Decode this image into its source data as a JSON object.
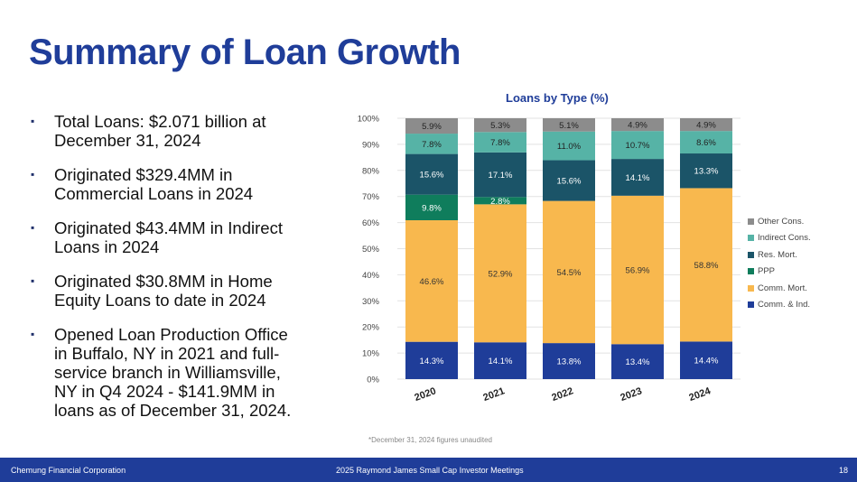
{
  "slide": {
    "title": "Summary of Loan Growth",
    "bullets": [
      "Total Loans: $2.071 billion at December 31, 2024",
      "Originated $329.4MM in Commercial Loans in 2024",
      "Originated $43.4MM in Indirect Loans in 2024",
      "Originated $30.8MM in Home Equity Loans to date in 2024",
      "Opened Loan Production Office in Buffalo, NY in 2021 and full-service branch in Williamsville, NY in Q4 2024 -  $141.9MM in loans as of December 31, 2024."
    ],
    "bullet_glyph": "▪",
    "footnote": "*December 31, 2024 figures unaudited"
  },
  "footer": {
    "org": "Chemung Financial Corporation",
    "event": "2025 Raymond James Small Cap Investor Meetings",
    "page": "18"
  },
  "chart_data": {
    "type": "bar",
    "stacked": true,
    "title": "Loans by Type (%)",
    "categories": [
      "2020",
      "2021",
      "2022",
      "2023",
      "2024"
    ],
    "ylim": [
      0,
      100
    ],
    "yticks": [
      "0%",
      "10%",
      "20%",
      "30%",
      "40%",
      "50%",
      "60%",
      "70%",
      "80%",
      "90%",
      "100%"
    ],
    "legend_position": "right",
    "grid": true,
    "series": [
      {
        "name": "Comm. & Ind.",
        "color": "#1f3d99",
        "label_color": "#ffffff",
        "values": [
          14.3,
          14.1,
          13.8,
          13.4,
          14.4
        ],
        "labels": [
          "14.3%",
          "14.1%",
          "13.8%",
          "13.4%",
          "14.4%"
        ]
      },
      {
        "name": "Comm. Mort.",
        "color": "#f8b84e",
        "label_color": "#333333",
        "values": [
          46.6,
          52.9,
          54.5,
          56.9,
          58.8
        ],
        "labels": [
          "46.6%",
          "52.9%",
          "54.5%",
          "56.9%",
          "58.8%"
        ]
      },
      {
        "name": "PPP",
        "color": "#0f7d5c",
        "label_color": "#ffffff",
        "values": [
          9.8,
          2.8,
          0,
          0,
          0
        ],
        "labels": [
          "9.8%",
          "2.8%",
          "",
          "",
          ""
        ]
      },
      {
        "name": "Res. Mort.",
        "color": "#1b5468",
        "label_color": "#ffffff",
        "values": [
          15.6,
          17.1,
          15.6,
          14.1,
          13.3
        ],
        "labels": [
          "15.6%",
          "17.1%",
          "15.6%",
          "14.1%",
          "13.3%"
        ]
      },
      {
        "name": "Indirect Cons.",
        "color": "#56b3a6",
        "label_color": "#222222",
        "values": [
          7.8,
          7.8,
          11.0,
          10.7,
          8.6
        ],
        "labels": [
          "7.8%",
          "7.8%",
          "11.0%",
          "10.7%",
          "8.6%"
        ]
      },
      {
        "name": "Other Cons.",
        "color": "#8c8c8c",
        "label_color": "#222222",
        "values": [
          5.9,
          5.3,
          5.1,
          4.9,
          4.9
        ],
        "labels": [
          "5.9%",
          "5.3%",
          "5.1%",
          "4.9%",
          "4.9%"
        ]
      }
    ]
  }
}
